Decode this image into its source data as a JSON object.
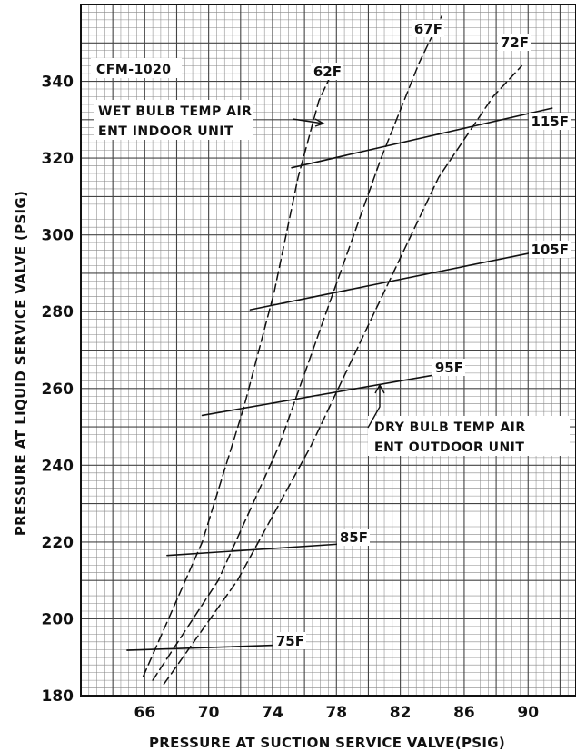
{
  "chart_data": {
    "type": "line",
    "title": "",
    "xlabel": "PRESSURE AT SUCTION SERVICE VALVE(PSIG)",
    "ylabel": "PRESSURE AT LIQUID SERVICE VALVE (PSIG)",
    "xlim": [
      62,
      93
    ],
    "ylim": [
      180,
      360
    ],
    "x_ticks": [
      66,
      70,
      74,
      78,
      82,
      86,
      90
    ],
    "x_tick_labels": [
      "66",
      "70",
      "74",
      "78",
      "82",
      "86",
      "90"
    ],
    "y_ticks": [
      180,
      200,
      220,
      240,
      260,
      280,
      300,
      320,
      340
    ],
    "y_tick_labels": [
      "180",
      "200",
      "220",
      "240",
      "260",
      "280",
      "300",
      "320",
      "340"
    ],
    "grid": true,
    "annotations": {
      "cfm": "CFM-1020",
      "wet_bulb": [
        "WET BULB TEMP AIR",
        "ENT INDOOR UNIT"
      ],
      "dry_bulb": [
        "DRY BULB TEMP AIR",
        "ENT OUTDOOR UNIT"
      ]
    },
    "series": [
      {
        "name": "62F",
        "group": "wet_bulb",
        "style": "dashed",
        "x": [
          65.9,
          69.6,
          72.2,
          74.1,
          75.6,
          76.9,
          77.7
        ],
        "y": [
          185,
          220,
          255,
          285,
          315,
          335,
          342
        ]
      },
      {
        "name": "67F",
        "group": "wet_bulb",
        "style": "dashed",
        "x": [
          66.5,
          70.6,
          74.4,
          77.8,
          80.8,
          83.2,
          84.6
        ],
        "y": [
          184,
          210,
          245,
          285,
          320,
          345,
          357
        ]
      },
      {
        "name": "72F",
        "group": "wet_bulb",
        "style": "dashed",
        "x": [
          67.2,
          71.8,
          76.4,
          80.4,
          84.4,
          87.8,
          89.6
        ],
        "y": [
          183,
          210,
          245,
          280,
          315,
          336,
          344
        ]
      },
      {
        "name": "75F",
        "group": "dry_bulb",
        "style": "solid",
        "x": [
          64.9,
          74.7
        ],
        "y": [
          191.8,
          193.2
        ]
      },
      {
        "name": "85F",
        "group": "dry_bulb",
        "style": "solid",
        "x": [
          67.4,
          78.3
        ],
        "y": [
          216.5,
          219.5
        ]
      },
      {
        "name": "95F",
        "group": "dry_bulb",
        "style": "solid",
        "x": [
          69.6,
          84.8
        ],
        "y": [
          253,
          264
        ]
      },
      {
        "name": "105F",
        "group": "dry_bulb",
        "style": "solid",
        "x": [
          72.6,
          90.4
        ],
        "y": [
          280.5,
          295.5
        ]
      },
      {
        "name": "115F",
        "group": "dry_bulb",
        "style": "solid",
        "x": [
          75.2,
          91.5
        ],
        "y": [
          317.5,
          333
        ]
      }
    ]
  }
}
